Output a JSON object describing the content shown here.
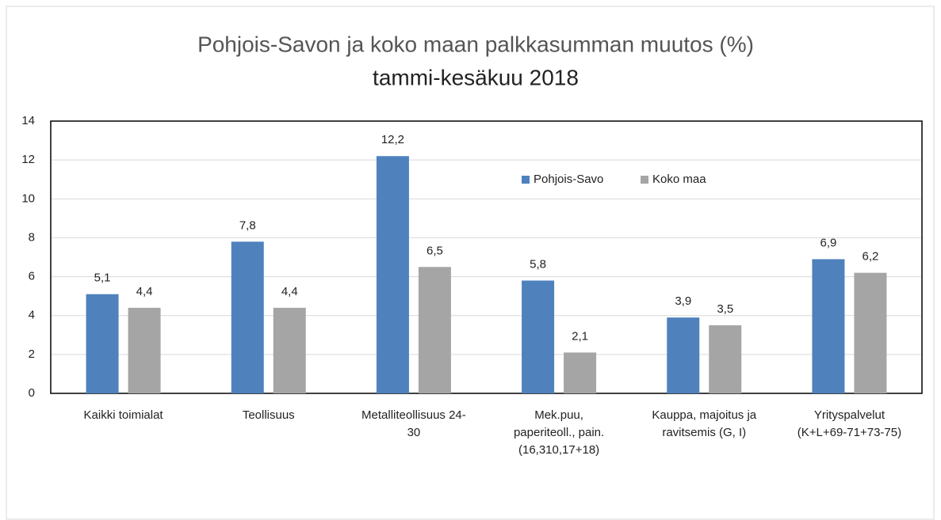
{
  "chart_data": {
    "type": "bar",
    "title": "Pohjois-Savon ja koko maan palkkasumman muutos (%)",
    "subtitle": "tammi-kesäkuu 2018",
    "categories": [
      [
        "Kaikki toimialat"
      ],
      [
        "Teollisuus"
      ],
      [
        "Metalliteollisuus 24-",
        "30"
      ],
      [
        "Mek.puu,",
        "paperiteoll., pain.",
        "(16,310,17+18)"
      ],
      [
        "Kauppa, majoitus ja",
        "ravitsemis (G, I)"
      ],
      [
        "Yrityspalvelut",
        "(K+L+69-71+73-75)"
      ]
    ],
    "series": [
      {
        "name": "Pohjois-Savo",
        "color": "#4f81bd",
        "values": [
          5.1,
          7.8,
          12.2,
          5.8,
          3.9,
          6.9
        ],
        "value_labels": [
          "5,1",
          "7,8",
          "12,2",
          "5,8",
          "3,9",
          "6,9"
        ]
      },
      {
        "name": "Koko maa",
        "color": "#a5a5a5",
        "values": [
          4.4,
          4.4,
          6.5,
          2.1,
          3.5,
          6.2
        ],
        "value_labels": [
          "4,4",
          "4,4",
          "6,5",
          "2,1",
          "3,5",
          "6,2"
        ]
      }
    ],
    "ylim": [
      0,
      14
    ],
    "yticks": [
      0,
      2,
      4,
      6,
      8,
      10,
      12,
      14
    ],
    "grid": true,
    "legend": "top-center"
  }
}
